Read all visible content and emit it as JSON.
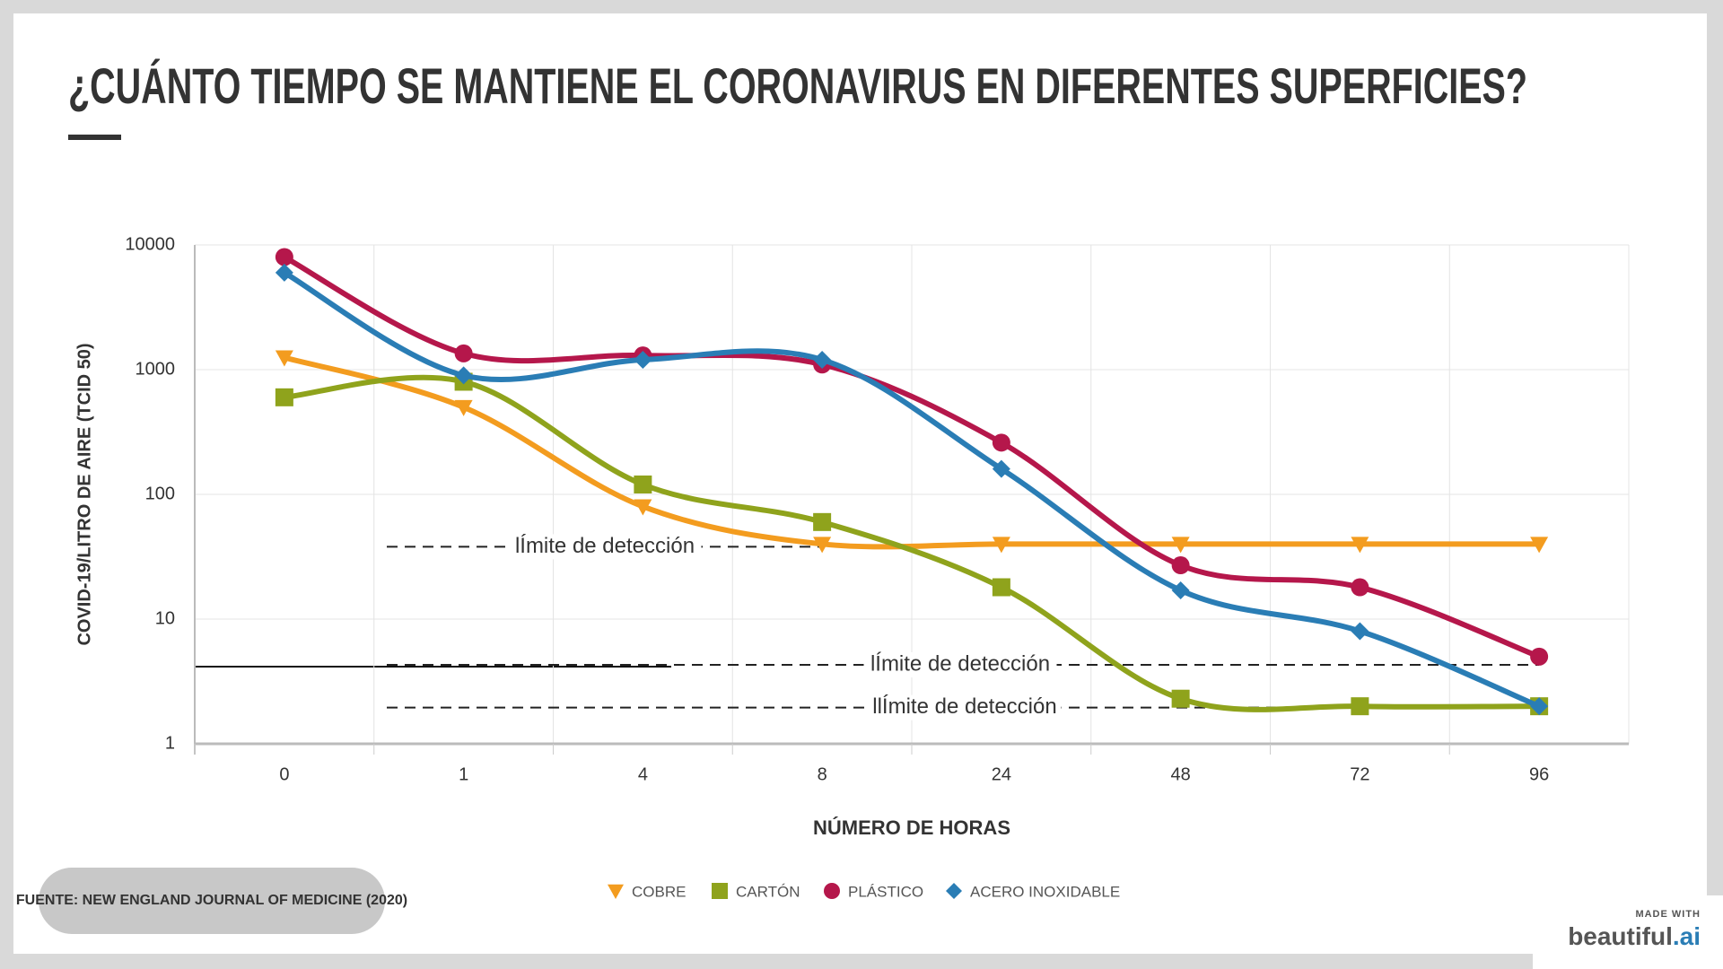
{
  "chart_data": {
    "type": "line",
    "title": "¿CUÁNTO TIEMPO SE MANTIENE EL CORONAVIRUS EN DIFERENTES SUPERFICIES?",
    "x_label": "NÚMERO DE HORAS",
    "y_label": "COVID-19/LITRO DE AIRE (TCID 50)",
    "categories": [
      "0",
      "1",
      "4",
      "8",
      "24",
      "48",
      "72",
      "96"
    ],
    "log_scale": true,
    "ylim": [
      1,
      10000
    ],
    "yticks": [
      1,
      10,
      100,
      1000,
      10000
    ],
    "grid": true,
    "series": [
      {
        "name": "COBRE",
        "color": "#f39c1f",
        "marker": "triangle-down",
        "values": [
          1250,
          500,
          80,
          40,
          40,
          40,
          40,
          40
        ]
      },
      {
        "name": "CARTÓN",
        "color": "#8fa31c",
        "marker": "square",
        "values": [
          600,
          800,
          120,
          60,
          18,
          2.3,
          2,
          2
        ]
      },
      {
        "name": "PLÁSTICO",
        "color": "#b5174b",
        "marker": "circle",
        "values": [
          8000,
          1350,
          1300,
          1100,
          260,
          27,
          18,
          5
        ]
      },
      {
        "name": "ACERO INOXIDABLE",
        "color": "#2a7db5",
        "marker": "diamond",
        "values": [
          6000,
          900,
          1200,
          1200,
          160,
          17,
          8,
          2
        ]
      }
    ],
    "annotations": [
      {
        "text": "lÍmite de detección",
        "y": 38
      },
      {
        "text": "lÍmite de detección",
        "y": 4.3
      },
      {
        "text": "llÍmite de detección",
        "y": 1.95
      }
    ],
    "source": "FUENTE: NEW ENGLAND JOURNAL OF MEDICINE (2020)"
  },
  "branding": {
    "made_with": "MADE WITH",
    "name": "beautiful",
    "suffix": ".ai"
  }
}
